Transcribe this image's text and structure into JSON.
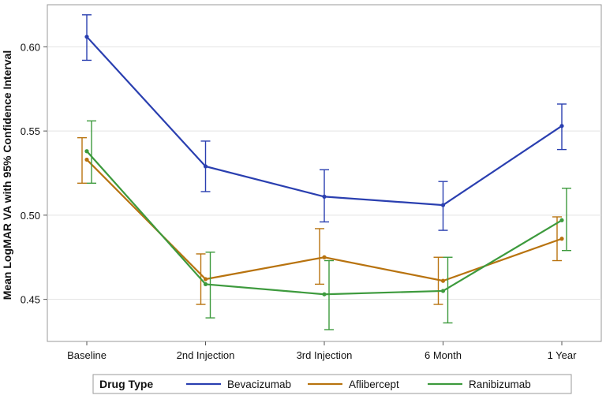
{
  "chart_data": {
    "type": "line",
    "title": "",
    "xlabel": "",
    "ylabel": "Mean LogMAR VA with 95% Confidence Interval",
    "categories": [
      "Baseline",
      "2nd Injection",
      "3rd Injection",
      "6 Month",
      "1 Year"
    ],
    "ylim": [
      0.425,
      0.625
    ],
    "yticks": [
      0.45,
      0.5,
      0.55,
      0.6
    ],
    "ytick_labels": [
      "0.45",
      "0.50",
      "0.55",
      "0.60"
    ],
    "grid": true,
    "legend": {
      "title": "Drug Type",
      "position": "bottom"
    },
    "series": [
      {
        "name": "Bevacizumab",
        "color": "#2a3fb0",
        "values": [
          0.606,
          0.529,
          0.511,
          0.506,
          0.553
        ],
        "ci_low": [
          0.592,
          0.514,
          0.496,
          0.491,
          0.539
        ],
        "ci_high": [
          0.619,
          0.544,
          0.527,
          0.52,
          0.566
        ]
      },
      {
        "name": "Aflibercept",
        "color": "#b8730f",
        "values": [
          0.533,
          0.462,
          0.475,
          0.461,
          0.486
        ],
        "ci_low": [
          0.519,
          0.447,
          0.459,
          0.447,
          0.473
        ],
        "ci_high": [
          0.546,
          0.477,
          0.492,
          0.475,
          0.499
        ]
      },
      {
        "name": "Ranibizumab",
        "color": "#3d9a3d",
        "values": [
          0.538,
          0.459,
          0.453,
          0.455,
          0.497
        ],
        "ci_low": [
          0.519,
          0.439,
          0.432,
          0.436,
          0.479
        ],
        "ci_high": [
          0.556,
          0.478,
          0.473,
          0.475,
          0.516
        ]
      }
    ]
  }
}
